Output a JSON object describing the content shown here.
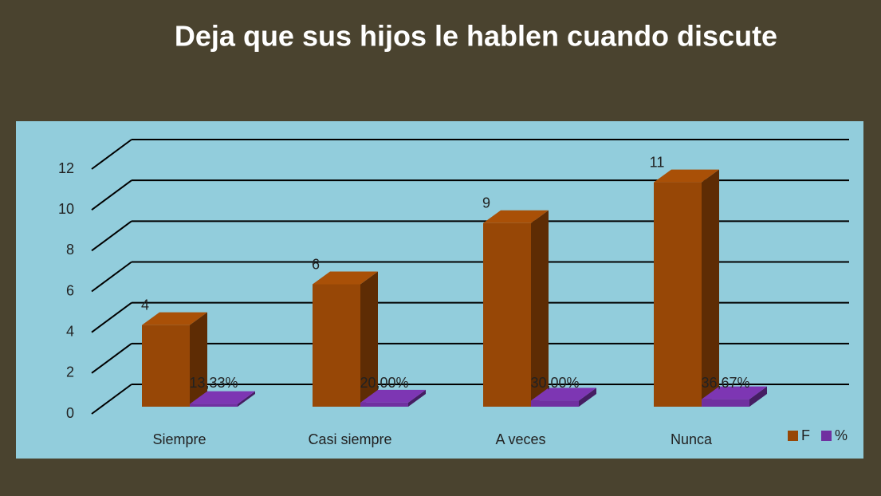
{
  "chart_data": {
    "type": "bar3d",
    "title": "Deja que sus hijos le hablen cuando discute",
    "categories": [
      "Siempre",
      "Casi siempre",
      "A veces",
      "Nunca"
    ],
    "series": [
      {
        "name": "F",
        "color": "#974706",
        "values": [
          4,
          6,
          9,
          11
        ]
      },
      {
        "name": "%",
        "color": "#7030a0",
        "values": [
          0.1333,
          0.2,
          0.3,
          0.3667
        ],
        "value_labels": [
          "13,33%",
          "20,00%",
          "30,00%",
          "36,67%"
        ]
      }
    ],
    "ylim": [
      0,
      12
    ],
    "yticks": [
      0,
      2,
      4,
      6,
      8,
      10,
      12
    ],
    "grid": true,
    "legend": "bottom-right"
  }
}
